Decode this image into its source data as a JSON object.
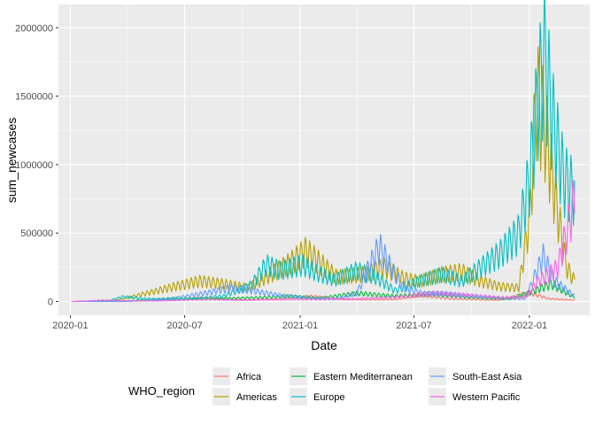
{
  "chart_data": {
    "type": "line",
    "xlabel": "Date",
    "ylabel": "sum_newcases",
    "x_ticks": [
      "2020-01",
      "2020-07",
      "2021-01",
      "2021-07",
      "2022-01"
    ],
    "x_tick_dates": [
      "2020-01-01",
      "2020-07-01",
      "2021-01-01",
      "2021-07-01",
      "2022-01-01"
    ],
    "y_ticks": [
      "0",
      "500000",
      "1000000",
      "1500000",
      "2000000"
    ],
    "y_tick_values": [
      0,
      500000,
      1000000,
      1500000,
      2000000
    ],
    "xlim": [
      "2019-12-13",
      "2022-04-07"
    ],
    "ylim": [
      -100000,
      2170000
    ],
    "grid": true,
    "weekly_oscillation": 0.35,
    "legend": {
      "title": "WHO_region",
      "position": "bottom",
      "entries": [
        "Africa",
        "Americas",
        "Eastern Mediterranean",
        "Europe",
        "South-East Asia",
        "Western Pacific"
      ]
    },
    "series": [
      {
        "name": "Africa",
        "color": "#F8766D",
        "dates": [
          "2020-01-03",
          "2020-04-01",
          "2020-07-01",
          "2020-07-25",
          "2020-10-01",
          "2021-01-01",
          "2021-01-15",
          "2021-03-15",
          "2021-06-01",
          "2021-07-10",
          "2021-09-01",
          "2021-11-15",
          "2021-12-20",
          "2022-01-05",
          "2022-02-01",
          "2022-03-14"
        ],
        "values": [
          0,
          2000,
          15000,
          28000,
          12000,
          25000,
          40000,
          15000,
          15000,
          45000,
          20000,
          10000,
          50000,
          60000,
          20000,
          10000
        ]
      },
      {
        "name": "Americas",
        "color": "#B79F00",
        "dates": [
          "2020-01-03",
          "2020-03-15",
          "2020-05-01",
          "2020-06-15",
          "2020-07-25",
          "2020-09-01",
          "2020-10-10",
          "2020-11-15",
          "2020-12-15",
          "2021-01-10",
          "2021-02-10",
          "2021-03-01",
          "2021-04-10",
          "2021-05-15",
          "2021-06-15",
          "2021-07-10",
          "2021-08-15",
          "2021-09-15",
          "2021-10-15",
          "2021-11-15",
          "2021-12-15",
          "2022-01-01",
          "2022-01-12",
          "2022-01-25",
          "2022-02-10",
          "2022-03-01",
          "2022-03-14"
        ],
        "values": [
          0,
          10000,
          60000,
          110000,
          150000,
          130000,
          100000,
          200000,
          280000,
          370000,
          250000,
          180000,
          200000,
          250000,
          170000,
          150000,
          200000,
          220000,
          150000,
          110000,
          100000,
          600000,
          1500000,
          1300000,
          800000,
          250000,
          150000
        ]
      },
      {
        "name": "Eastern Mediterranean",
        "color": "#00BA38",
        "dates": [
          "2020-01-03",
          "2020-04-01",
          "2020-06-15",
          "2020-08-15",
          "2020-11-01",
          "2020-12-15",
          "2021-02-01",
          "2021-04-01",
          "2021-06-01",
          "2021-08-01",
          "2021-10-01",
          "2021-12-01",
          "2022-01-10",
          "2022-02-05",
          "2022-03-14"
        ],
        "values": [
          0,
          5000,
          25000,
          20000,
          30000,
          40000,
          25000,
          60000,
          40000,
          55000,
          30000,
          20000,
          80000,
          130000,
          30000
        ]
      },
      {
        "name": "Europe",
        "color": "#00BFC4",
        "dates": [
          "2020-01-03",
          "2020-03-01",
          "2020-03-25",
          "2020-05-01",
          "2020-07-01",
          "2020-09-01",
          "2020-10-15",
          "2020-11-08",
          "2020-12-01",
          "2021-01-05",
          "2021-02-01",
          "2021-02-25",
          "2021-04-01",
          "2021-05-01",
          "2021-06-01",
          "2021-07-15",
          "2021-08-15",
          "2021-09-15",
          "2021-10-15",
          "2021-11-15",
          "2021-12-15",
          "2022-01-01",
          "2022-01-15",
          "2022-01-25",
          "2022-02-08",
          "2022-02-25",
          "2022-03-14"
        ],
        "values": [
          0,
          5000,
          35000,
          20000,
          15000,
          40000,
          120000,
          270000,
          230000,
          270000,
          200000,
          160000,
          230000,
          180000,
          80000,
          160000,
          200000,
          150000,
          250000,
          350000,
          500000,
          900000,
          1500000,
          1800000,
          1300000,
          900000,
          800000
        ]
      },
      {
        "name": "South-East Asia",
        "color": "#619CFF",
        "dates": [
          "2020-01-03",
          "2020-04-01",
          "2020-06-01",
          "2020-08-01",
          "2020-09-15",
          "2020-10-15",
          "2020-12-01",
          "2021-01-15",
          "2021-03-01",
          "2021-04-01",
          "2021-04-20",
          "2021-05-07",
          "2021-05-25",
          "2021-06-15",
          "2021-07-15",
          "2021-08-15",
          "2021-10-01",
          "2021-12-01",
          "2021-12-25",
          "2022-01-23",
          "2022-02-10",
          "2022-03-14"
        ],
        "values": [
          0,
          1000,
          15000,
          60000,
          100000,
          80000,
          45000,
          25000,
          20000,
          60000,
          250000,
          400000,
          250000,
          100000,
          60000,
          60000,
          40000,
          20000,
          20000,
          330000,
          150000,
          40000
        ]
      },
      {
        "name": "Western Pacific",
        "color": "#F564E3",
        "dates": [
          "2020-01-03",
          "2020-02-01",
          "2020-02-20",
          "2020-04-01",
          "2020-06-01",
          "2020-08-01",
          "2020-10-01",
          "2020-12-01",
          "2021-02-01",
          "2021-04-01",
          "2021-06-01",
          "2021-08-01",
          "2021-09-15",
          "2021-11-15",
          "2021-12-25",
          "2022-01-15",
          "2022-02-01",
          "2022-02-15",
          "2022-03-01",
          "2022-03-14"
        ],
        "values": [
          0,
          5000,
          10000,
          5000,
          5000,
          15000,
          10000,
          15000,
          15000,
          20000,
          30000,
          60000,
          50000,
          30000,
          30000,
          150000,
          200000,
          250000,
          500000,
          750000
        ]
      }
    ]
  }
}
